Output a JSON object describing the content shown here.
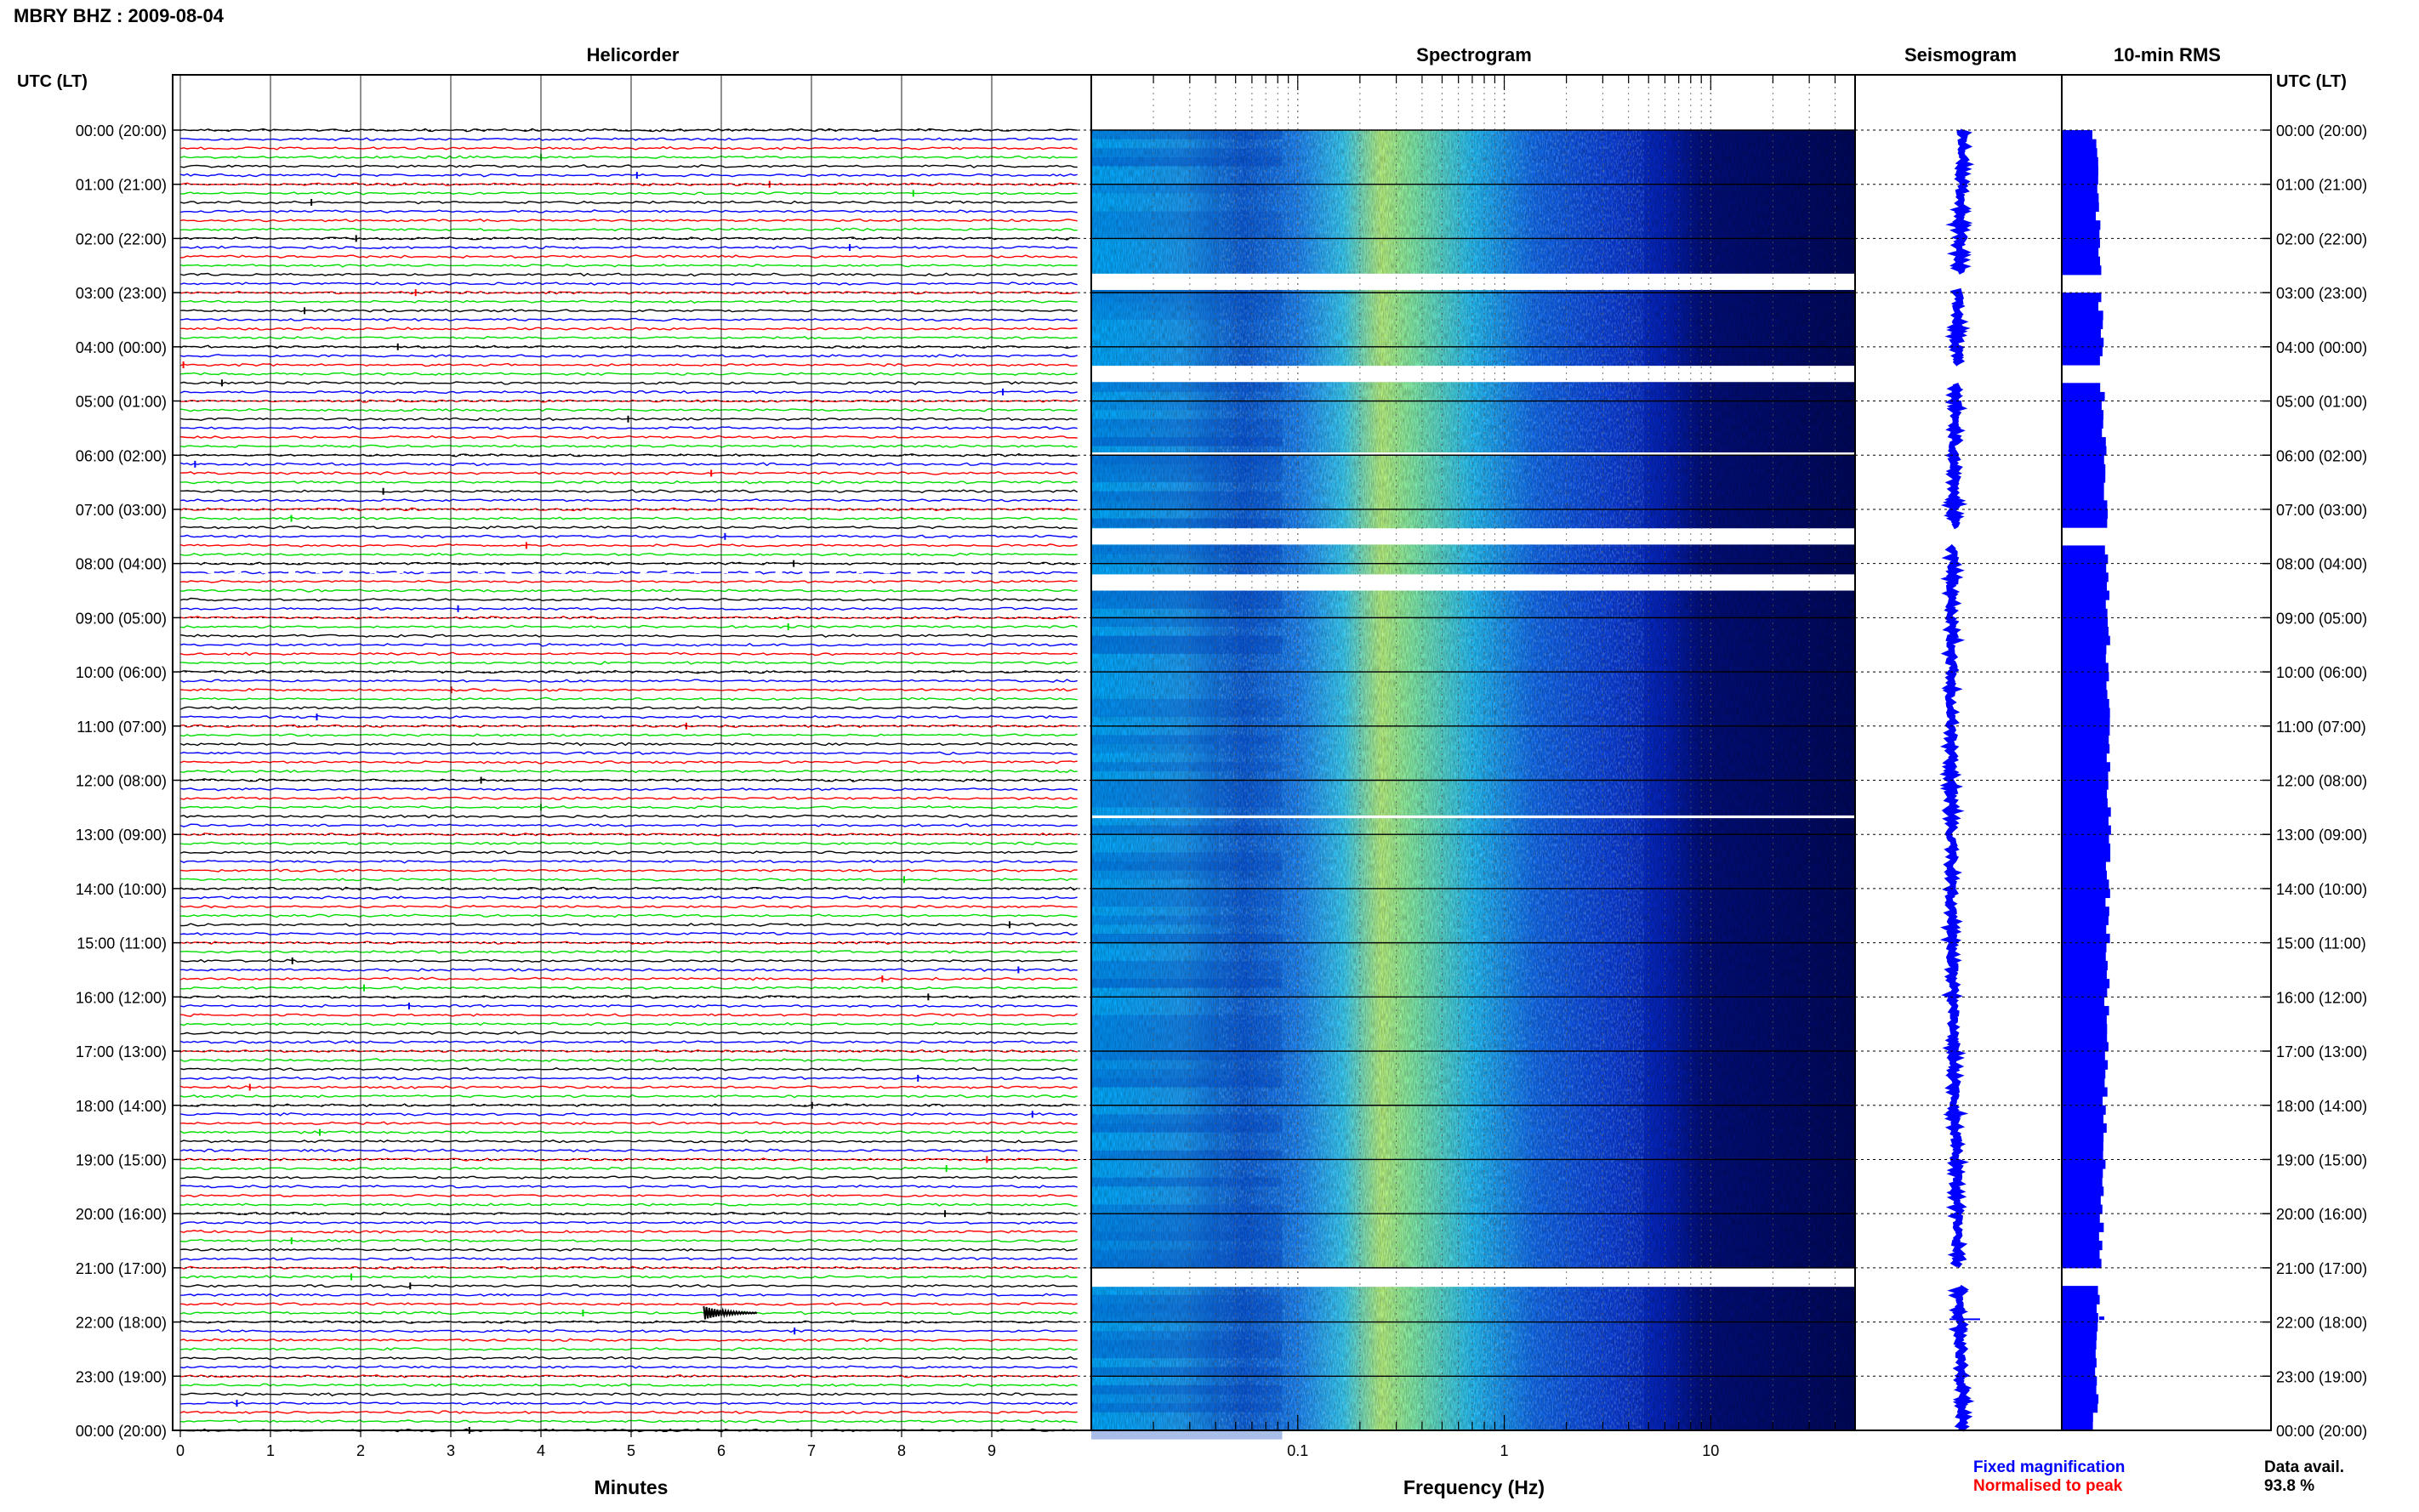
{
  "figure": {
    "title": "MBRY BHZ : 2009-08-04",
    "utc_left_label": "UTC (LT)",
    "utc_right_label": "UTC (LT)",
    "colors": {
      "trace_cycle": [
        "#000000",
        "#0000ff",
        "#ff0000",
        "#00dd00"
      ],
      "seismogram": "#0000ff",
      "rms": "#0000ff",
      "legend_fixed": "#0000ff",
      "legend_normalised": "#ff0000"
    }
  },
  "chart_data": [
    {
      "type": "line",
      "name": "helicorder",
      "title": "Helicorder",
      "xlabel": "Minutes",
      "xlim": [
        0,
        10
      ],
      "x_ticks": [
        0,
        1,
        2,
        3,
        4,
        5,
        6,
        7,
        8,
        9
      ],
      "x_tick_labels": [
        "0",
        "1",
        "2",
        "3",
        "4",
        "5",
        "6",
        "7",
        "8",
        "9"
      ],
      "rows_per_hour": 6,
      "row_count": 145,
      "time_labels": [
        "00:00 (20:00)",
        "01:00 (21:00)",
        "02:00 (22:00)",
        "03:00 (23:00)",
        "04:00 (00:00)",
        "05:00 (01:00)",
        "06:00 (02:00)",
        "07:00 (03:00)",
        "08:00 (04:00)",
        "09:00 (05:00)",
        "10:00 (06:00)",
        "11:00 (07:00)",
        "12:00 (08:00)",
        "13:00 (09:00)",
        "14:00 (10:00)",
        "15:00 (11:00)",
        "16:00 (12:00)",
        "17:00 (13:00)",
        "18:00 (14:00)",
        "19:00 (15:00)",
        "20:00 (16:00)",
        "21:00 (17:00)",
        "22:00 (18:00)",
        "23:00 (19:00)",
        "00:00 (20:00)"
      ],
      "events": [
        {
          "hour": 21.8,
          "minute": 5.9,
          "note": "largest burst"
        }
      ]
    },
    {
      "type": "heatmap",
      "name": "spectrogram",
      "title": "Spectrogram",
      "xlabel": "Frequency (Hz)",
      "x_scale": "log",
      "xlim": [
        0.01,
        50
      ],
      "x_tick_labels": [
        "0.1",
        "1",
        "10"
      ],
      "x_tick_values": [
        0.1,
        1,
        10
      ],
      "y_unit": "hours UTC",
      "ylim": [
        0,
        24
      ],
      "colormap": "jet",
      "peak_frequency_hz": 0.3,
      "gaps_hours": [
        [
          2.65,
          2.95
        ],
        [
          4.35,
          4.65
        ],
        [
          5.95,
          6.0
        ],
        [
          7.35,
          7.65
        ],
        [
          8.2,
          8.5
        ],
        [
          12.65,
          12.7
        ],
        [
          21.0,
          21.35
        ]
      ]
    },
    {
      "type": "line",
      "name": "seismogram",
      "title": "Seismogram",
      "y_unit": "hours UTC",
      "ylim": [
        0,
        24
      ],
      "gaps_hours": [
        [
          2.65,
          2.95
        ],
        [
          4.35,
          4.65
        ],
        [
          7.35,
          7.65
        ],
        [
          21.0,
          21.35
        ]
      ]
    },
    {
      "type": "bar",
      "name": "rms",
      "title": "10-min RMS",
      "y_unit": "hours UTC",
      "ylim": [
        0,
        24
      ],
      "gaps_hours": [
        [
          2.65,
          2.95
        ],
        [
          4.35,
          4.65
        ],
        [
          7.35,
          7.65
        ],
        [
          21.0,
          21.35
        ]
      ]
    }
  ],
  "legend": {
    "fixed": "Fixed magnification",
    "normalised": "Normalised to peak"
  },
  "availability": {
    "label": "Data avail.",
    "value": "93.8 %"
  }
}
